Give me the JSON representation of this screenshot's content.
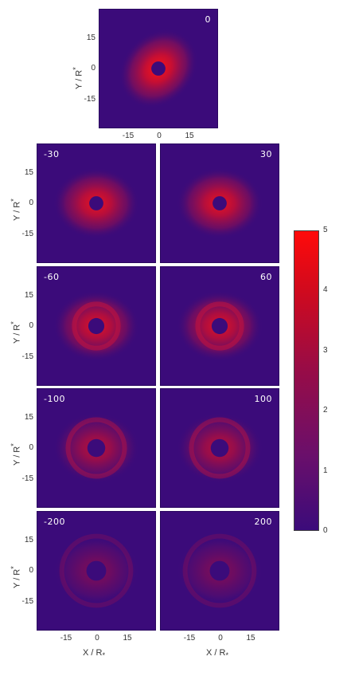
{
  "panels": [
    {
      "label": "0",
      "angle": -45,
      "pos": "top",
      "intensity": 1.0,
      "ring": 0
    },
    {
      "label": "-30",
      "angle": 0,
      "pos": "left",
      "intensity": 0.9,
      "ring": 0
    },
    {
      "label": "30",
      "angle": 0,
      "pos": "right",
      "intensity": 0.9,
      "ring": 0
    },
    {
      "label": "-60",
      "angle": 0,
      "pos": "left",
      "intensity": 0.85,
      "ring": 1
    },
    {
      "label": "60",
      "angle": 0,
      "pos": "right",
      "intensity": 0.85,
      "ring": 1
    },
    {
      "label": "-100",
      "angle": 0,
      "pos": "left",
      "intensity": 0.65,
      "ring": 2
    },
    {
      "label": "100",
      "angle": 0,
      "pos": "right",
      "intensity": 0.65,
      "ring": 2
    },
    {
      "label": "-200",
      "angle": 0,
      "pos": "left",
      "intensity": 0.35,
      "ring": 3
    },
    {
      "label": "200",
      "angle": 0,
      "pos": "right",
      "intensity": 0.35,
      "ring": 3
    }
  ],
  "axes": {
    "y_label": "Y / R",
    "y_label_sub": "*",
    "x_label": "X / R",
    "x_label_sub": "*",
    "y_ticks": [
      "15",
      "0",
      "-15"
    ],
    "x_ticks": [
      "-15",
      "0",
      "15"
    ]
  },
  "colorbar": {
    "min": 0,
    "max": 5,
    "ticks": [
      "5",
      "4",
      "3",
      "2",
      "1",
      "0"
    ],
    "colors": [
      "#3b0b7a",
      "#ff0a0a"
    ]
  }
}
